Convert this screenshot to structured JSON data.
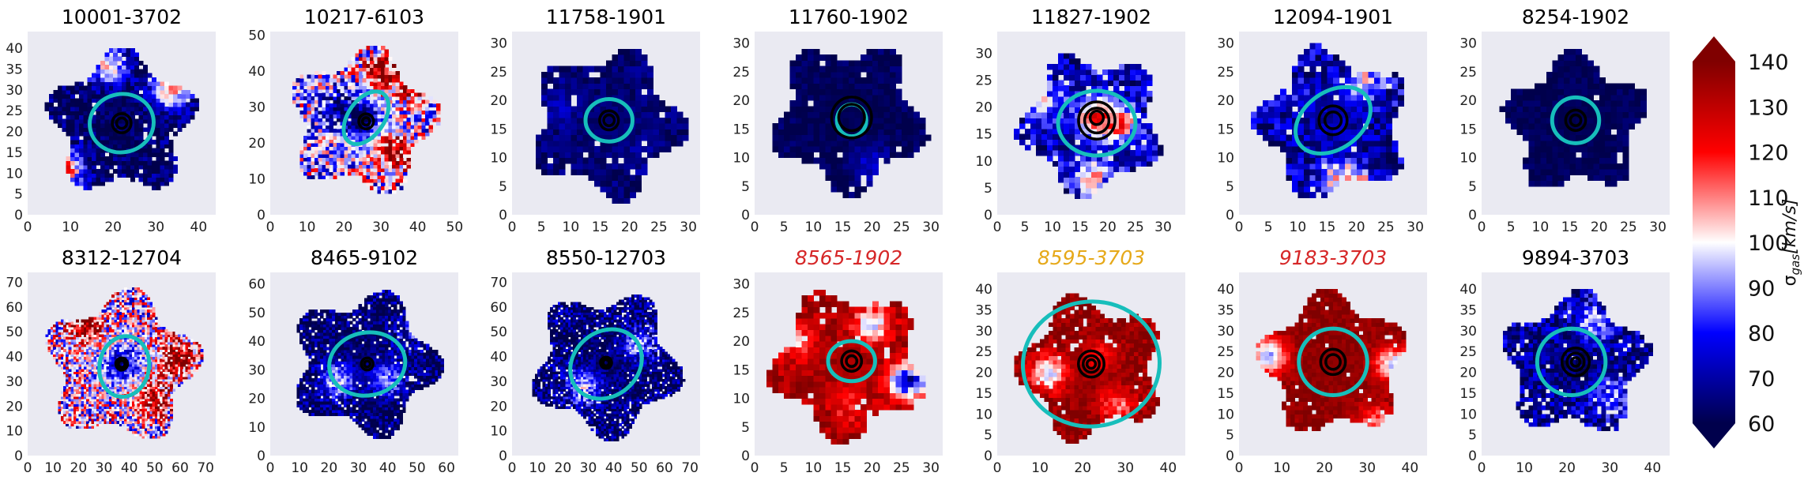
{
  "figure": {
    "colorbar": {
      "label": "σgas[km/s]",
      "label_main": "σ",
      "label_sub": "gas",
      "label_rest": "[km/s]",
      "range": [
        60,
        140
      ],
      "ticks": [
        "60",
        "70",
        "80",
        "90",
        "100",
        "110",
        "120",
        "130",
        "140"
      ],
      "colormap": "seismic",
      "extend": "both",
      "colors": {
        "low": "#00004c",
        "mid": "#ffffff",
        "high": "#800000"
      }
    },
    "style": {
      "axes_face": "#eaeaf2",
      "cyan_ellipse": "#17bebb",
      "black_ellipse": "#000000",
      "grid": false
    }
  },
  "chart_data": [
    {
      "type": "heatmap",
      "title": "10001-3702",
      "title_color": "#000000",
      "title_italic": false,
      "xlim": [
        0,
        44
      ],
      "ylim": [
        0,
        44
      ],
      "xticks": [
        "0",
        "10",
        "20",
        "30",
        "40"
      ],
      "yticks": [
        "0",
        "5",
        "10",
        "15",
        "20",
        "25",
        "30",
        "35",
        "40"
      ],
      "center": [
        22,
        22
      ],
      "data_radius": 17,
      "base_sigma": 62,
      "noise": 0.25,
      "blobs": [
        [
          19,
          36,
          105
        ],
        [
          33,
          30,
          110
        ],
        [
          9,
          11,
          112
        ]
      ],
      "cyan_ellipse": {
        "x": 22,
        "y": 22,
        "a": 7.5,
        "b": 7,
        "angle": 10
      },
      "black_ellipses": [
        [
          22,
          22,
          2.2
        ],
        [
          22,
          22,
          1.2
        ]
      ]
    },
    {
      "type": "heatmap",
      "title": "10217-6103",
      "title_color": "#000000",
      "title_italic": false,
      "xlim": [
        0,
        51
      ],
      "ylim": [
        0,
        51
      ],
      "xticks": [
        "0",
        "10",
        "20",
        "30",
        "40",
        "50"
      ],
      "yticks": [
        "0",
        "10",
        "20",
        "30",
        "40",
        "50"
      ],
      "center": [
        25,
        26
      ],
      "data_radius": 20,
      "base_sigma": 95,
      "noise": 0.55,
      "blobs": [
        [
          34,
          18,
          135
        ],
        [
          40,
          36,
          135
        ],
        [
          30,
          40,
          140
        ],
        [
          18,
          30,
          70
        ],
        [
          24,
          27,
          60
        ]
      ],
      "cyan_ellipse": {
        "x": 26,
        "y": 27,
        "a": 8,
        "b": 5,
        "angle": 55
      },
      "black_ellipses": [
        [
          26,
          26,
          2
        ],
        [
          26,
          26,
          1
        ]
      ]
    },
    {
      "type": "heatmap",
      "title": "11758-1901",
      "title_color": "#000000",
      "title_italic": false,
      "xlim": [
        0,
        32
      ],
      "ylim": [
        0,
        32
      ],
      "xticks": [
        "0",
        "5",
        "10",
        "15",
        "20",
        "25",
        "30"
      ],
      "yticks": [
        "0",
        "5",
        "10",
        "15",
        "20",
        "25",
        "30"
      ],
      "center": [
        16,
        16
      ],
      "data_radius": 13,
      "base_sigma": 64,
      "noise": 0.12,
      "blobs": [
        [
          8,
          19,
          72
        ],
        [
          22,
          10,
          70
        ]
      ],
      "cyan_ellipse": {
        "x": 16.5,
        "y": 16.5,
        "a": 4,
        "b": 3.7,
        "angle": 0
      },
      "black_ellipses": [
        [
          16.5,
          16.5,
          1.6
        ],
        [
          16.5,
          16.5,
          0.9
        ]
      ]
    },
    {
      "type": "heatmap",
      "title": "11760-1902",
      "title_color": "#000000",
      "title_italic": false,
      "xlim": [
        0,
        32
      ],
      "ylim": [
        0,
        32
      ],
      "xticks": [
        "0",
        "5",
        "10",
        "15",
        "20",
        "25",
        "30"
      ],
      "yticks": [
        "0",
        "5",
        "10",
        "15",
        "20",
        "25",
        "30"
      ],
      "center": [
        16,
        17
      ],
      "data_radius": 13,
      "base_sigma": 61,
      "noise": 0.1,
      "blobs": [
        [
          13,
          11,
          60
        ],
        [
          20,
          9,
          75
        ]
      ],
      "cyan_ellipse": {
        "x": 16.5,
        "y": 16.5,
        "a": 2.5,
        "b": 2.8,
        "angle": 0
      },
      "black_ellipses": [
        [
          16.5,
          17,
          3.4
        ],
        [
          16.5,
          17,
          2.2
        ]
      ]
    },
    {
      "type": "heatmap",
      "title": "11827-1902",
      "title_color": "#000000",
      "title_italic": false,
      "xlim": [
        0,
        34
      ],
      "ylim": [
        0,
        34
      ],
      "xticks": [
        "0",
        "5",
        "10",
        "15",
        "20",
        "25",
        "30"
      ],
      "yticks": [
        "0",
        "5",
        "10",
        "15",
        "20",
        "25",
        "30"
      ],
      "center": [
        17,
        17
      ],
      "data_radius": 13,
      "base_sigma": 72,
      "noise": 0.3,
      "blobs": [
        [
          18,
          18,
          125
        ],
        [
          22,
          17,
          118
        ],
        [
          9,
          21,
          95
        ],
        [
          17,
          7,
          105
        ]
      ],
      "cyan_ellipse": {
        "x": 18,
        "y": 17,
        "a": 7,
        "b": 6,
        "angle": 0
      },
      "black_ellipses": [
        [
          18,
          17.5,
          3.3
        ],
        [
          18,
          17.5,
          2.2
        ],
        [
          18,
          18,
          1.2
        ]
      ]
    },
    {
      "type": "heatmap",
      "title": "12094-1901",
      "title_color": "#000000",
      "title_italic": false,
      "xlim": [
        0,
        32
      ],
      "ylim": [
        0,
        32
      ],
      "xticks": [
        "0",
        "5",
        "10",
        "15",
        "20",
        "25",
        "30"
      ],
      "yticks": [
        "0",
        "5",
        "10",
        "15",
        "20",
        "25",
        "30"
      ],
      "center": [
        16,
        16
      ],
      "data_radius": 13,
      "base_sigma": 70,
      "noise": 0.3,
      "blobs": [
        [
          21,
          23,
          100
        ],
        [
          17,
          7,
          98
        ],
        [
          20,
          4,
          120
        ],
        [
          8,
          22,
          80
        ]
      ],
      "cyan_ellipse": {
        "x": 16,
        "y": 16.5,
        "a": 7,
        "b": 5,
        "angle": 35
      },
      "black_ellipses": [
        [
          16,
          16.5,
          2.4
        ],
        [
          16,
          16.5,
          1.4
        ]
      ]
    },
    {
      "type": "heatmap",
      "title": "8254-1902",
      "title_color": "#000000",
      "title_italic": false,
      "xlim": [
        0,
        32
      ],
      "ylim": [
        0,
        32
      ],
      "xticks": [
        "0",
        "5",
        "10",
        "15",
        "20",
        "25",
        "30"
      ],
      "yticks": [
        "0",
        "5",
        "10",
        "15",
        "20",
        "25",
        "30"
      ],
      "center": [
        16,
        16
      ],
      "data_radius": 12,
      "base_sigma": 61,
      "noise": 0.08,
      "blobs": [],
      "cyan_ellipse": {
        "x": 16,
        "y": 16.5,
        "a": 4,
        "b": 4,
        "angle": 0
      },
      "black_ellipses": [
        [
          16,
          16.5,
          1.7
        ],
        [
          16,
          16.5,
          0.9
        ]
      ]
    },
    {
      "type": "heatmap",
      "title": "8312-12704",
      "title_color": "#000000",
      "title_italic": false,
      "xlim": [
        0,
        74
      ],
      "ylim": [
        0,
        74
      ],
      "xticks": [
        "0",
        "10",
        "20",
        "30",
        "40",
        "50",
        "60",
        "70"
      ],
      "yticks": [
        "0",
        "10",
        "20",
        "30",
        "40",
        "50",
        "60",
        "70"
      ],
      "center": [
        37,
        36
      ],
      "data_radius": 30,
      "base_sigma": 100,
      "noise": 0.6,
      "blobs": [
        [
          37,
          37,
          72
        ],
        [
          50,
          24,
          130
        ],
        [
          22,
          52,
          130
        ],
        [
          60,
          40,
          135
        ]
      ],
      "cyan_ellipse": {
        "x": 38,
        "y": 36,
        "a": 12,
        "b": 10,
        "angle": 80
      },
      "black_ellipses": [
        [
          37,
          37,
          2.3
        ],
        [
          37,
          37,
          1.3
        ]
      ]
    },
    {
      "type": "heatmap",
      "title": "8465-9102",
      "title_color": "#000000",
      "title_italic": false,
      "xlim": [
        0,
        64
      ],
      "ylim": [
        0,
        64
      ],
      "xticks": [
        "0",
        "10",
        "20",
        "30",
        "40",
        "50",
        "60"
      ],
      "yticks": [
        "0",
        "10",
        "20",
        "30",
        "40",
        "50",
        "60"
      ],
      "center": [
        32,
        32
      ],
      "data_radius": 25,
      "base_sigma": 62,
      "noise": 0.3,
      "blobs": [
        [
          23,
          26,
          95
        ],
        [
          40,
          27,
          90
        ],
        [
          47,
          42,
          78
        ]
      ],
      "cyan_ellipse": {
        "x": 33,
        "y": 32,
        "a": 13,
        "b": 11,
        "angle": 10
      },
      "black_ellipses": [
        [
          33,
          32,
          2
        ],
        [
          33,
          32,
          1
        ]
      ]
    },
    {
      "type": "heatmap",
      "title": "8550-12703",
      "title_color": "#000000",
      "title_italic": false,
      "xlim": [
        0,
        74
      ],
      "ylim": [
        0,
        74
      ],
      "xticks": [
        "0",
        "10",
        "20",
        "30",
        "40",
        "50",
        "60",
        "70"
      ],
      "yticks": [
        "0",
        "10",
        "20",
        "30",
        "40",
        "50",
        "60",
        "70"
      ],
      "center": [
        37,
        37
      ],
      "data_radius": 29,
      "base_sigma": 62,
      "noise": 0.35,
      "blobs": [
        [
          28,
          28,
          95
        ],
        [
          50,
          45,
          90
        ]
      ],
      "cyan_ellipse": {
        "x": 37,
        "y": 37,
        "a": 15,
        "b": 13,
        "angle": 40
      },
      "black_ellipses": [
        [
          37,
          37.5,
          2.2
        ],
        [
          37,
          37.5,
          1.2
        ]
      ]
    },
    {
      "type": "heatmap",
      "title": "8565-1902",
      "title_color": "#d62728",
      "title_italic": true,
      "xlim": [
        0,
        32
      ],
      "ylim": [
        0,
        32
      ],
      "xticks": [
        "0",
        "5",
        "10",
        "15",
        "20",
        "25",
        "30"
      ],
      "yticks": [
        "0",
        "5",
        "10",
        "15",
        "20",
        "25",
        "30"
      ],
      "center": [
        16,
        16
      ],
      "data_radius": 13,
      "base_sigma": 135,
      "noise": 0.2,
      "blobs": [
        [
          20,
          23,
          95
        ],
        [
          16,
          9,
          118
        ],
        [
          26,
          13,
          70
        ],
        [
          7,
          20,
          110
        ]
      ],
      "cyan_ellipse": {
        "x": 16.5,
        "y": 16.5,
        "a": 4,
        "b": 3.5,
        "angle": 0
      },
      "black_ellipses": [
        [
          16.5,
          16.5,
          1.7
        ],
        [
          16.5,
          16.5,
          0.9
        ]
      ]
    },
    {
      "type": "heatmap",
      "title": "8595-3703",
      "title_color": "#e6a91a",
      "title_italic": true,
      "xlim": [
        0,
        44
      ],
      "ylim": [
        0,
        44
      ],
      "xticks": [
        "0",
        "10",
        "20",
        "30",
        "40"
      ],
      "yticks": [
        "0",
        "5",
        "10",
        "15",
        "20",
        "25",
        "30",
        "35",
        "40"
      ],
      "center": [
        22,
        21
      ],
      "data_radius": 17,
      "base_sigma": 138,
      "noise": 0.18,
      "blobs": [
        [
          12,
          20,
          95
        ],
        [
          28,
          12,
          110
        ],
        [
          24,
          24,
          120
        ]
      ],
      "cyan_ellipse": {
        "x": 22,
        "y": 22,
        "a": 16,
        "b": 15,
        "angle": 5
      },
      "black_ellipses": [
        [
          22,
          22,
          3
        ],
        [
          22,
          22,
          1.9
        ],
        [
          22,
          22,
          1
        ]
      ]
    },
    {
      "type": "heatmap",
      "title": "9183-3703",
      "title_color": "#d62728",
      "title_italic": true,
      "xlim": [
        0,
        44
      ],
      "ylim": [
        0,
        44
      ],
      "xticks": [
        "0",
        "10",
        "20",
        "30",
        "40"
      ],
      "yticks": [
        "0",
        "5",
        "10",
        "15",
        "20",
        "25",
        "30",
        "35",
        "40"
      ],
      "center": [
        22,
        22
      ],
      "data_radius": 17,
      "base_sigma": 138,
      "noise": 0.12,
      "blobs": [
        [
          7,
          24,
          90
        ],
        [
          36,
          22,
          95
        ],
        [
          32,
          8,
          110
        ]
      ],
      "cyan_ellipse": {
        "x": 22,
        "y": 22.5,
        "a": 8,
        "b": 8,
        "angle": 0
      },
      "black_ellipses": [
        [
          22,
          22.5,
          2.9
        ],
        [
          22,
          22.5,
          1.7
        ]
      ]
    },
    {
      "type": "heatmap",
      "title": "9894-3703",
      "title_color": "#000000",
      "title_italic": false,
      "xlim": [
        0,
        44
      ],
      "ylim": [
        0,
        44
      ],
      "xticks": [
        "0",
        "10",
        "20",
        "30",
        "40"
      ],
      "yticks": [
        "0",
        "5",
        "10",
        "15",
        "20",
        "25",
        "30",
        "35",
        "40"
      ],
      "center": [
        22,
        22
      ],
      "data_radius": 17,
      "base_sigma": 68,
      "noise": 0.3,
      "blobs": [
        [
          26,
          32,
          95
        ],
        [
          30,
          14,
          88
        ],
        [
          22,
          22,
          62
        ]
      ],
      "cyan_ellipse": {
        "x": 21,
        "y": 22.5,
        "a": 8,
        "b": 8,
        "angle": 0
      },
      "black_ellipses": [
        [
          22,
          22.5,
          3.2
        ],
        [
          22,
          22.5,
          2
        ],
        [
          22,
          22.5,
          1
        ]
      ]
    }
  ]
}
